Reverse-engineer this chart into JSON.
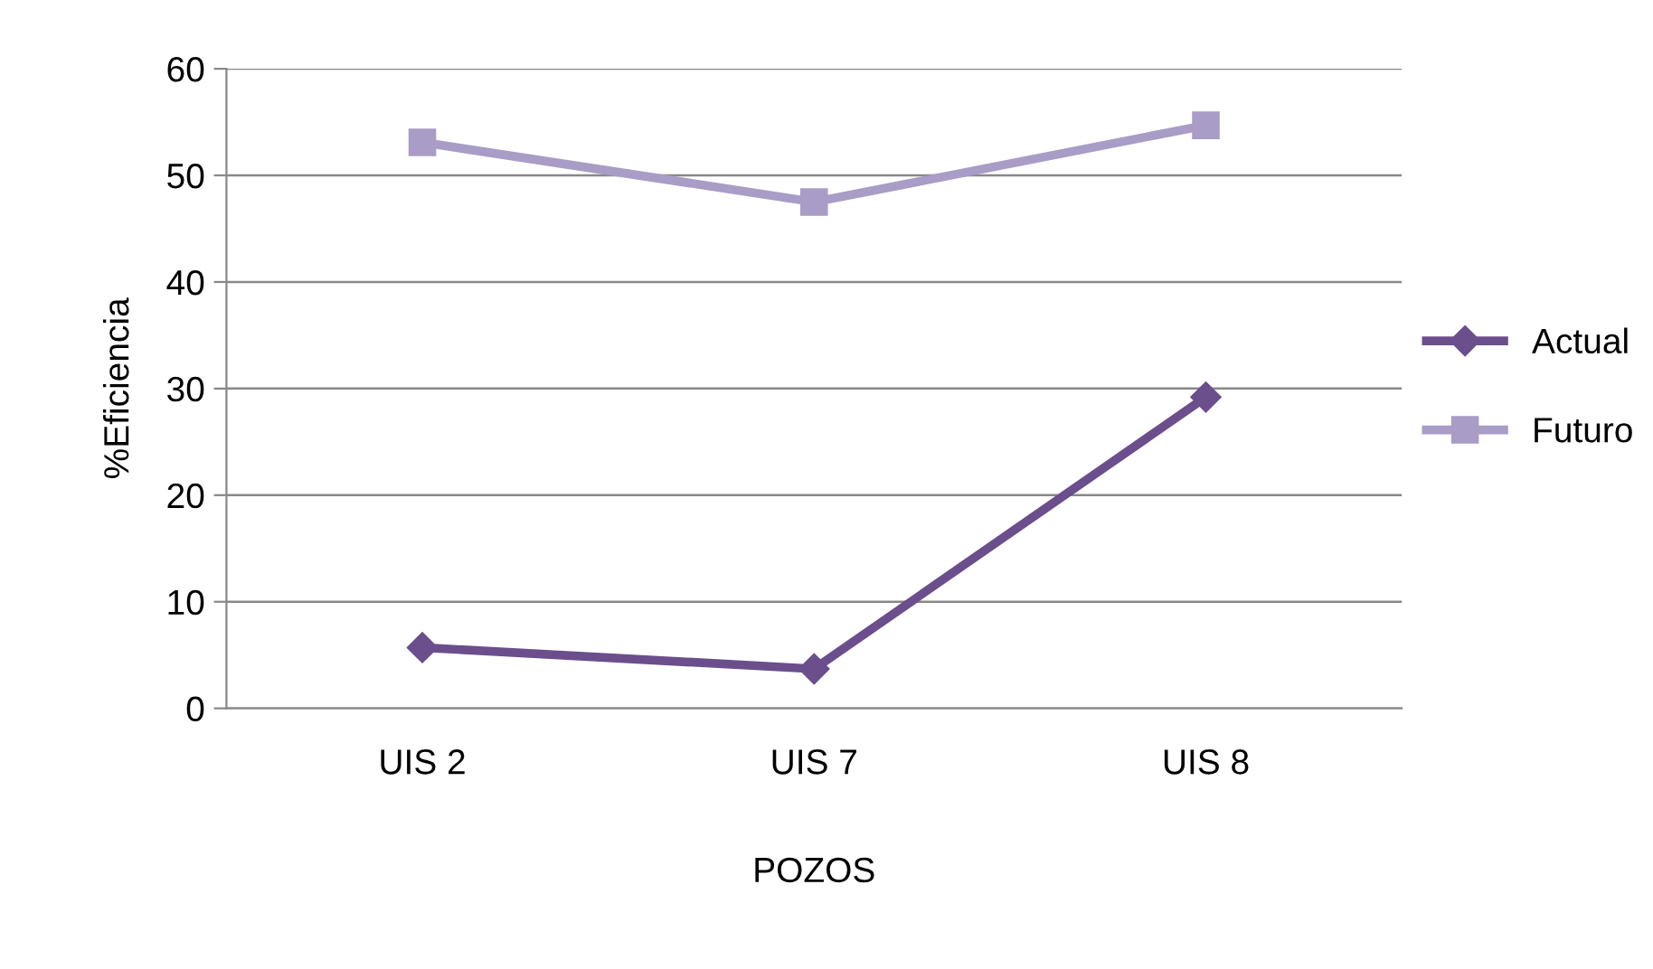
{
  "chart_data": {
    "type": "line",
    "xlabel": "POZOS",
    "ylabel": "%Eficiencia",
    "categories": [
      "UIS 2",
      "UIS 7",
      "UIS 8"
    ],
    "series": [
      {
        "name": "Actual",
        "color": "#6b4e8c",
        "marker": "diamond",
        "values": [
          5.7,
          3.7,
          29.2
        ]
      },
      {
        "name": "Futuro",
        "color": "#a99cc6",
        "marker": "square",
        "values": [
          53.1,
          47.5,
          54.7
        ]
      }
    ],
    "ylim": [
      0,
      60
    ],
    "yticks": [
      0,
      10,
      20,
      30,
      40,
      50,
      60
    ],
    "grid": "y",
    "legend": "right"
  }
}
